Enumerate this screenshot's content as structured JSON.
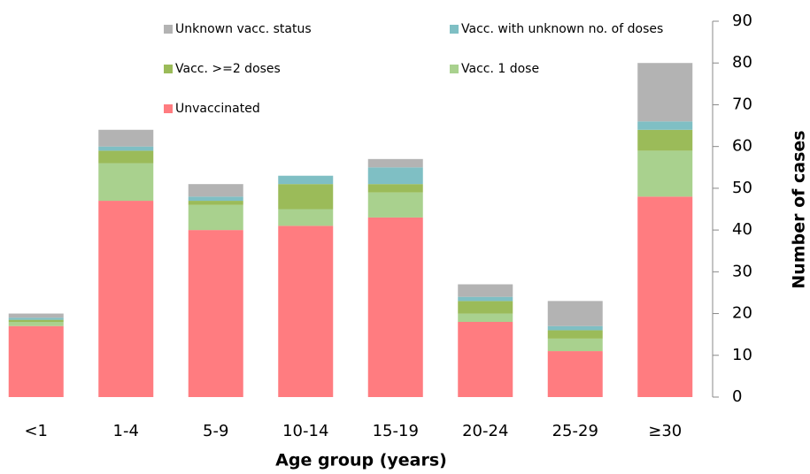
{
  "chart_data": {
    "type": "stacked_bar",
    "categories": [
      "<1",
      "1-4",
      "5-9",
      "10-14",
      "15-19",
      "20-24",
      "25-29",
      "≥30"
    ],
    "series": [
      {
        "name": "Unvaccinated",
        "color": "#ff7c80",
        "values": [
          17,
          47,
          40,
          41,
          43,
          18,
          11,
          48
        ]
      },
      {
        "name": "Vacc. 1 dose",
        "color": "#a9d18e",
        "values": [
          1,
          9,
          6,
          4,
          6,
          2,
          3,
          11
        ]
      },
      {
        "name": "Vacc. >=2 doses",
        "color": "#9bbb59",
        "values": [
          0.5,
          3,
          1,
          6,
          2,
          3,
          2,
          5
        ]
      },
      {
        "name": "Vacc. with unknown no. of doses",
        "color": "#7fbfc4",
        "values": [
          0.5,
          1,
          1,
          2,
          4,
          1,
          1,
          2
        ]
      },
      {
        "name": "Unknown vacc. status",
        "color": "#b3b3b3",
        "values": [
          1,
          4,
          3,
          0,
          2,
          3,
          6,
          14
        ]
      }
    ],
    "x_label": "Age group (years)",
    "y_label": "Number of cases",
    "ylim": [
      0,
      90
    ],
    "yticks": [
      0,
      10,
      20,
      30,
      40,
      50,
      60,
      70,
      80,
      90
    ]
  }
}
